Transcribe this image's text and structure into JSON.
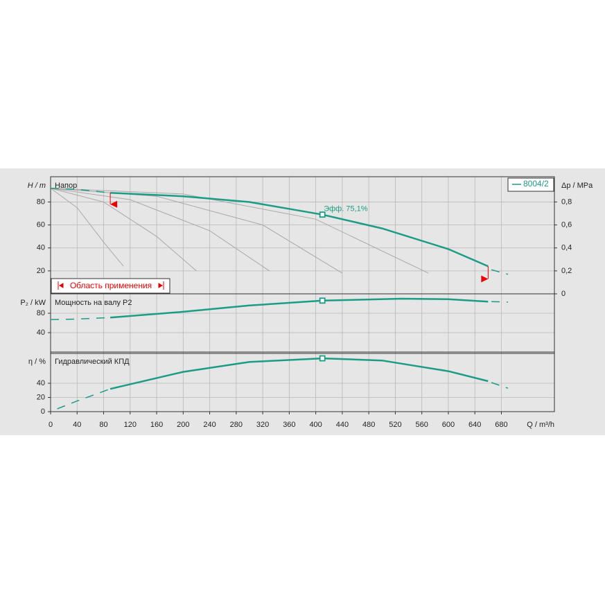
{
  "chart_data": [
    {
      "type": "line",
      "title": "Напор",
      "y_label": "H / m",
      "y2_label": "Δp / MPa",
      "x": [
        90,
        200,
        300,
        410,
        500,
        600,
        660
      ],
      "series": [
        {
          "name": "8004/2",
          "color": "#1b9c85",
          "values": [
            88,
            85,
            80,
            69,
            57,
            39,
            24
          ]
        }
      ],
      "extrapolated": {
        "x": [
          0,
          40,
          90
        ],
        "values": [
          92,
          91,
          88
        ]
      },
      "extrapolated_end": {
        "x": [
          665,
          690
        ],
        "values": [
          21,
          17
        ]
      },
      "reference_curves": [
        {
          "x": [
            0,
            40,
            80,
            110
          ],
          "values": [
            92,
            75,
            45,
            24
          ]
        },
        {
          "x": [
            0,
            80,
            160,
            220
          ],
          "values": [
            92,
            80,
            50,
            20
          ]
        },
        {
          "x": [
            0,
            120,
            240,
            330
          ],
          "values": [
            92,
            82,
            55,
            20
          ]
        },
        {
          "x": [
            0,
            160,
            320,
            440
          ],
          "values": [
            92,
            85,
            60,
            18
          ]
        },
        {
          "x": [
            0,
            200,
            400,
            570
          ],
          "values": [
            92,
            87,
            65,
            18
          ]
        }
      ],
      "duty_point": {
        "x": 410,
        "y": 69,
        "label": "Эфф.  75,1%"
      },
      "operating_range": {
        "label": "Область применения",
        "xmin": 90,
        "xmax": 660,
        "ymin_mark": 78,
        "ymax_mark": 13
      },
      "xlim": [
        0,
        760
      ],
      "ylim": [
        0,
        102
      ],
      "yticks": [
        20,
        40,
        60,
        80
      ],
      "y2lim": [
        0,
        1.02
      ],
      "y2ticks": [
        0,
        {
          "value": 0.2,
          "label": "0,2"
        },
        {
          "value": 0.4,
          "label": "0,4"
        },
        {
          "value": 0.6,
          "label": "0,6"
        },
        {
          "value": 0.8,
          "label": "0,8"
        }
      ],
      "grid": true
    },
    {
      "type": "line",
      "title": "Мощность на валу P2",
      "y_label": "P₂ / kW",
      "x": [
        90,
        200,
        300,
        410,
        530,
        600,
        660
      ],
      "values": [
        71,
        83,
        96,
        106,
        110,
        109,
        104
      ],
      "color": "#1b9c85",
      "extrapolated": {
        "x": [
          0,
          40,
          90
        ],
        "values": [
          67,
          68,
          71
        ]
      },
      "extrapolated_end": {
        "x": [
          665,
          690
        ],
        "values": [
          104,
          103
        ]
      },
      "duty_point": {
        "x": 410,
        "y": 106
      },
      "xlim": [
        0,
        760
      ],
      "ylim": [
        0,
        120
      ],
      "yticks": [
        40,
        80
      ],
      "grid": true
    },
    {
      "type": "line",
      "title": "Гидравлический КПД",
      "y_label": "η / %",
      "x_label": "Q / m³/h",
      "x": [
        90,
        200,
        300,
        410,
        500,
        600,
        660
      ],
      "values": [
        32,
        56,
        70,
        75.1,
        72,
        57,
        43
      ],
      "color": "#1b9c85",
      "extrapolated": {
        "x": [
          10,
          40,
          90
        ],
        "values": [
          4,
          15,
          32
        ]
      },
      "extrapolated_end": {
        "x": [
          665,
          690
        ],
        "values": [
          41,
          33
        ]
      },
      "duty_point": {
        "x": 410,
        "y": 75.1
      },
      "xlim": [
        0,
        760
      ],
      "ylim": [
        0,
        82
      ],
      "yticks": [
        0,
        20,
        40
      ],
      "xticks": [
        0,
        40,
        80,
        120,
        160,
        200,
        240,
        280,
        320,
        360,
        400,
        440,
        480,
        520,
        560,
        600,
        640,
        680
      ],
      "grid": true
    }
  ]
}
